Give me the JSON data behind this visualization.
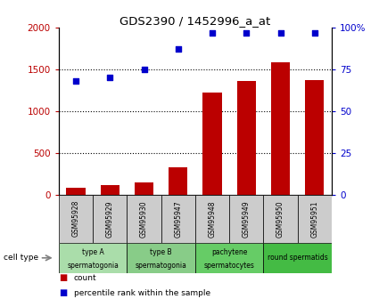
{
  "title": "GDS2390 / 1452996_a_at",
  "samples": [
    "GSM95928",
    "GSM95929",
    "GSM95930",
    "GSM95947",
    "GSM95948",
    "GSM95949",
    "GSM95950",
    "GSM95951"
  ],
  "counts": [
    90,
    115,
    145,
    330,
    1220,
    1360,
    1590,
    1370
  ],
  "percentile_ranks": [
    68,
    70,
    75,
    87,
    97,
    97,
    97,
    97
  ],
  "left_ylim": [
    0,
    2000
  ],
  "right_ylim": [
    0,
    100
  ],
  "left_yticks": [
    0,
    500,
    1000,
    1500,
    2000
  ],
  "right_yticks": [
    0,
    25,
    50,
    75,
    100
  ],
  "right_yticklabels": [
    "0",
    "25",
    "50",
    "75",
    "100%"
  ],
  "bar_color": "#bb0000",
  "dot_color": "#0000cc",
  "cell_types": [
    {
      "label": "type A\nspermatogonia",
      "samples": [
        0,
        1
      ],
      "color": "#aaddaa"
    },
    {
      "label": "type B\nspermatogonia",
      "samples": [
        2,
        3
      ],
      "color": "#88cc88"
    },
    {
      "label": "pachytene\nspermatocytes",
      "samples": [
        4,
        5
      ],
      "color": "#66cc66"
    },
    {
      "label": "round spermatids",
      "samples": [
        6,
        7
      ],
      "color": "#44bb44"
    }
  ],
  "gsm_bg_color": "#cccccc",
  "legend_count_color": "#bb0000",
  "legend_pct_color": "#0000cc",
  "grid_color": "#000000"
}
